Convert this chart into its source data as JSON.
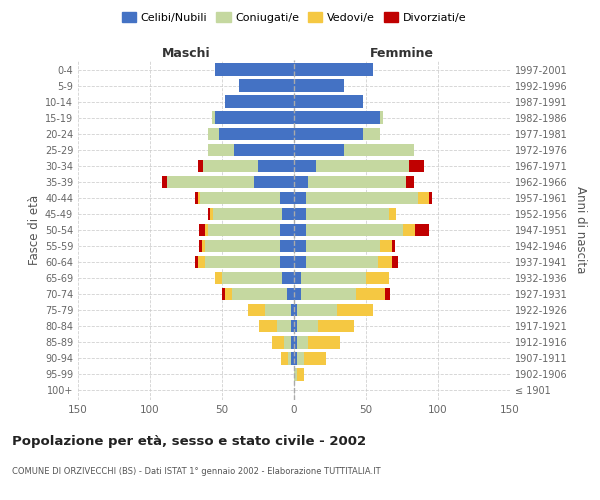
{
  "age_groups": [
    "100+",
    "95-99",
    "90-94",
    "85-89",
    "80-84",
    "75-79",
    "70-74",
    "65-69",
    "60-64",
    "55-59",
    "50-54",
    "45-49",
    "40-44",
    "35-39",
    "30-34",
    "25-29",
    "20-24",
    "15-19",
    "10-14",
    "5-9",
    "0-4"
  ],
  "birth_years": [
    "≤ 1901",
    "1902-1906",
    "1907-1911",
    "1912-1916",
    "1917-1921",
    "1922-1926",
    "1927-1931",
    "1932-1936",
    "1937-1941",
    "1942-1946",
    "1947-1951",
    "1952-1956",
    "1957-1961",
    "1962-1966",
    "1967-1971",
    "1972-1976",
    "1977-1981",
    "1982-1986",
    "1987-1991",
    "1992-1996",
    "1997-2001"
  ],
  "colors": {
    "celibi": "#4472C4",
    "coniugati": "#C5D8A0",
    "vedovi": "#F5C842",
    "divorziati": "#C00000"
  },
  "maschi": {
    "celibi": [
      0,
      0,
      2,
      2,
      2,
      2,
      5,
      8,
      10,
      10,
      10,
      8,
      10,
      28,
      25,
      42,
      52,
      55,
      48,
      38,
      55
    ],
    "coniugati": [
      0,
      0,
      2,
      5,
      10,
      18,
      38,
      42,
      52,
      52,
      50,
      48,
      55,
      60,
      38,
      18,
      8,
      2,
      0,
      0,
      0
    ],
    "vedovi": [
      0,
      0,
      5,
      8,
      12,
      12,
      5,
      5,
      5,
      2,
      2,
      2,
      2,
      0,
      0,
      0,
      0,
      0,
      0,
      0,
      0
    ],
    "divorziati": [
      0,
      0,
      0,
      0,
      0,
      0,
      2,
      0,
      2,
      2,
      4,
      2,
      2,
      4,
      4,
      0,
      0,
      0,
      0,
      0,
      0
    ]
  },
  "femmine": {
    "celibi": [
      0,
      0,
      2,
      2,
      2,
      2,
      5,
      5,
      8,
      8,
      8,
      8,
      8,
      10,
      15,
      35,
      48,
      60,
      48,
      35,
      55
    ],
    "coniugati": [
      0,
      2,
      5,
      8,
      15,
      28,
      38,
      45,
      50,
      52,
      68,
      58,
      78,
      68,
      65,
      48,
      12,
      2,
      0,
      0,
      0
    ],
    "vedovi": [
      0,
      5,
      15,
      22,
      25,
      25,
      20,
      16,
      10,
      8,
      8,
      5,
      8,
      0,
      0,
      0,
      0,
      0,
      0,
      0,
      0
    ],
    "divorziati": [
      0,
      0,
      0,
      0,
      0,
      0,
      4,
      0,
      4,
      2,
      10,
      0,
      2,
      5,
      10,
      0,
      0,
      0,
      0,
      0,
      0
    ]
  },
  "title": "Popolazione per età, sesso e stato civile - 2002",
  "subtitle": "COMUNE DI ORZIVECCHI (BS) - Dati ISTAT 1° gennaio 2002 - Elaborazione TUTTITALIA.IT",
  "xlabel_left": "Maschi",
  "xlabel_right": "Femmine",
  "ylabel_left": "Fasce di età",
  "ylabel_right": "Anni di nascita",
  "legend_labels": [
    "Celibi/Nubili",
    "Coniugati/e",
    "Vedovi/e",
    "Divorziati/e"
  ],
  "xlim": 150,
  "background_color": "#ffffff",
  "grid_color": "#cccccc"
}
